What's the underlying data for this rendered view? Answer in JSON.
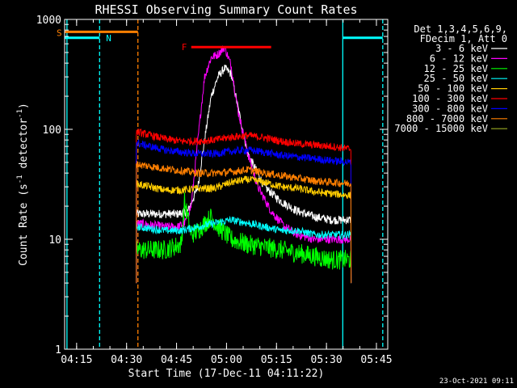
{
  "chart_data": {
    "type": "line",
    "title": "RHESSI Observing Summary Count Rates",
    "xlabel": "Start Time (17-Dec-11 04:11:22)",
    "ylabel_main": "Count Rate (s",
    "ylabel_sup1": "-1",
    "ylabel_mid": " detector",
    "ylabel_sup2": "-1",
    "ylabel_end": ")",
    "yscale": "log",
    "ylim": [
      1,
      1000
    ],
    "xlim_minutes": [
      0,
      97
    ],
    "x_ticks": [
      {
        "label": "04:15",
        "minutes": 3.6
      },
      {
        "label": "04:30",
        "minutes": 18.6
      },
      {
        "label": "04:45",
        "minutes": 33.6
      },
      {
        "label": "05:00",
        "minutes": 48.6
      },
      {
        "label": "05:15",
        "minutes": 63.6
      },
      {
        "label": "05:30",
        "minutes": 78.6
      },
      {
        "label": "05:45",
        "minutes": 93.6
      }
    ],
    "y_ticks": [
      {
        "label": "1",
        "value": 1
      },
      {
        "label": "10",
        "value": 10
      },
      {
        "label": "100",
        "value": 100
      },
      {
        "label": "1000",
        "value": 1000
      }
    ],
    "legend_header": [
      "Det 1,3,4,5,6,9,",
      "FDecim 1, Att 0"
    ],
    "legend_position": "top-right",
    "series": [
      {
        "name": "3 - 6 keV",
        "color": "#ffffff",
        "kind": "flare_soft",
        "x": [
          21.5,
          30,
          34,
          37,
          40,
          42,
          44,
          46,
          48,
          50,
          52,
          55,
          60,
          65,
          70,
          75,
          80,
          86
        ],
        "values": [
          17,
          17,
          17,
          18,
          30,
          80,
          200,
          300,
          360,
          320,
          160,
          60,
          30,
          22,
          18,
          16,
          15,
          15
        ]
      },
      {
        "name": "6 - 12 keV",
        "color": "#ff00ff",
        "kind": "flare_mid",
        "x": [
          21.5,
          30,
          34,
          36,
          38,
          40,
          42,
          44,
          46,
          48,
          50,
          52,
          55,
          58,
          62,
          66,
          70,
          75,
          80,
          86
        ],
        "values": [
          14,
          13,
          13,
          14,
          20,
          80,
          300,
          450,
          480,
          560,
          380,
          150,
          60,
          30,
          18,
          13,
          11,
          10,
          10,
          10
        ]
      },
      {
        "name": "12 - 25 keV",
        "color": "#00ff00",
        "kind": "noisy",
        "x": [
          21.5,
          25,
          30,
          35,
          36,
          38,
          40,
          44,
          46,
          50,
          55,
          60,
          65,
          70,
          75,
          80,
          86
        ],
        "values": [
          8,
          8,
          8,
          9,
          22,
          11,
          12,
          16,
          13,
          10,
          9,
          8.5,
          8,
          7.5,
          7,
          6.5,
          6.5
        ]
      },
      {
        "name": "25 - 50 keV",
        "color": "#00ffff",
        "kind": "noisy",
        "x": [
          21.5,
          30,
          35,
          40,
          45,
          50,
          55,
          60,
          65,
          70,
          75,
          80,
          86
        ],
        "values": [
          13,
          12,
          12,
          13,
          14,
          15,
          14,
          13,
          12,
          12,
          11,
          11,
          11
        ]
      },
      {
        "name": "50 - 100 keV",
        "color": "#ffcc00",
        "kind": "noisy",
        "x": [
          21.5,
          30,
          35,
          40,
          45,
          50,
          55,
          60,
          65,
          70,
          75,
          80,
          86
        ],
        "values": [
          32,
          28,
          28,
          29,
          29,
          33,
          35,
          33,
          30,
          29,
          27,
          26,
          25
        ]
      },
      {
        "name": "100 - 300 keV",
        "color": "#ff0000",
        "kind": "noisy",
        "x": [
          21.5,
          30,
          35,
          40,
          45,
          50,
          55,
          60,
          65,
          70,
          75,
          80,
          86
        ],
        "values": [
          95,
          82,
          78,
          78,
          80,
          85,
          88,
          84,
          78,
          74,
          72,
          70,
          66
        ]
      },
      {
        "name": "300 - 800 keV",
        "color": "#0000ff",
        "kind": "noisy",
        "x": [
          21.5,
          30,
          35,
          40,
          45,
          50,
          55,
          60,
          65,
          70,
          75,
          80,
          86
        ],
        "values": [
          75,
          65,
          62,
          60,
          60,
          63,
          65,
          62,
          58,
          56,
          54,
          52,
          50
        ]
      },
      {
        "name": "800 - 7000 keV",
        "color": "#ff7f00",
        "kind": "noisy",
        "x": [
          21.5,
          30,
          35,
          40,
          45,
          50,
          55,
          60,
          65,
          70,
          75,
          80,
          86
        ],
        "values": [
          48,
          44,
          42,
          40,
          40,
          41,
          43,
          40,
          38,
          36,
          34,
          33,
          32
        ]
      },
      {
        "name": "7000 - 15000 keV",
        "color": "#99aa22",
        "kind": "hidden",
        "x": [],
        "values": []
      }
    ],
    "flags": [
      {
        "label": "S",
        "color": "#ff7f00",
        "value": 770,
        "start_minutes": 0,
        "end_minutes": 22
      },
      {
        "label": "N",
        "color": "#00ffff",
        "value": 680,
        "start_minutes": 0,
        "end_minutes": 10.5
      },
      {
        "label": "",
        "color": "#00ffff",
        "value": 680,
        "start_minutes": 83.5,
        "end_minutes": 95.5
      },
      {
        "label": "F",
        "color": "#ff0000",
        "value": 560,
        "start_minutes": 38,
        "end_minutes": 62
      }
    ],
    "vlines": [
      {
        "minutes": 0.7,
        "color": "#00ffff",
        "style": "solid"
      },
      {
        "minutes": 10.5,
        "color": "#00ffff",
        "style": "dashed"
      },
      {
        "minutes": 22.0,
        "color": "#ff7f00",
        "style": "dashed"
      },
      {
        "minutes": 83.5,
        "color": "#00ffff",
        "style": "solid"
      },
      {
        "minutes": 95.5,
        "color": "#00ffff",
        "style": "dashed"
      }
    ],
    "timestamp": "23-Oct-2021 09:11"
  }
}
